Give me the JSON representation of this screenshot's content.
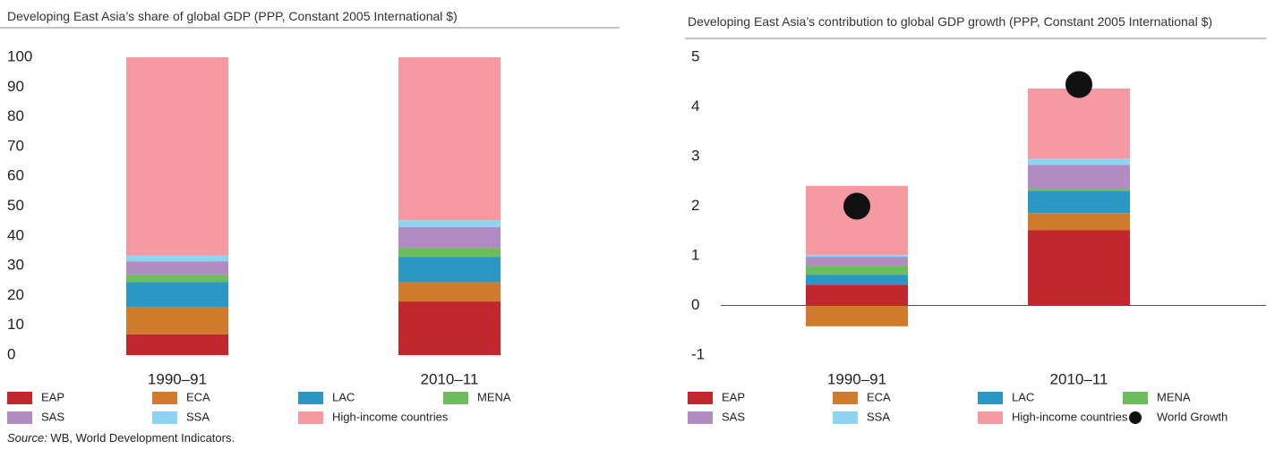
{
  "chart_data": [
    {
      "type": "bar",
      "stacked": true,
      "title": "Developing East Asia’s share of global GDP (PPP, Constant 2005 International $)",
      "categories": [
        "1990–91",
        "2010–11"
      ],
      "series": [
        {
          "name": "EAP",
          "color": "#c1272d",
          "values": [
            7,
            18
          ]
        },
        {
          "name": "ECA",
          "color": "#d07a2e",
          "values": [
            9,
            6.5
          ]
        },
        {
          "name": "LAC",
          "color": "#2b97c4",
          "values": [
            8.5,
            8.5
          ]
        },
        {
          "name": "MENA",
          "color": "#6cbd5c",
          "values": [
            2.5,
            3
          ]
        },
        {
          "name": "SAS",
          "color": "#b08cc2",
          "values": [
            4.5,
            7
          ]
        },
        {
          "name": "SSA",
          "color": "#8fd3f2",
          "values": [
            2,
            2.3
          ]
        },
        {
          "name": "High-income countries",
          "color": "#f49aa0",
          "values": [
            66.5,
            54.7
          ]
        }
      ],
      "ylim": [
        0,
        100
      ],
      "yticks": [
        0,
        10,
        20,
        30,
        40,
        50,
        60,
        70,
        80,
        90,
        100
      ]
    },
    {
      "type": "bar",
      "stacked": true,
      "title": "Developing East Asia’s contribution to global GDP growth (PPP, Constant 2005 International $)",
      "categories": [
        "1990–91",
        "2010–11"
      ],
      "series": [
        {
          "name": "EAP",
          "color": "#c1272d",
          "values": [
            0.42,
            1.52
          ]
        },
        {
          "name": "ECA",
          "color": "#d07a2e",
          "values": [
            -0.42,
            0.34
          ]
        },
        {
          "name": "LAC",
          "color": "#2b97c4",
          "values": [
            0.2,
            0.45
          ]
        },
        {
          "name": "MENA",
          "color": "#6cbd5c",
          "values": [
            0.18,
            0.04
          ]
        },
        {
          "name": "SAS",
          "color": "#b08cc2",
          "values": [
            0.18,
            0.48
          ]
        },
        {
          "name": "SSA",
          "color": "#8fd3f2",
          "values": [
            0.04,
            0.13
          ]
        },
        {
          "name": "High-income countries",
          "color": "#f49aa0",
          "values": [
            1.39,
            1.41
          ]
        }
      ],
      "points": {
        "name": "World Growth",
        "color": "#111111",
        "values": [
          2.0,
          4.45
        ]
      },
      "ylim": [
        -1,
        5
      ],
      "yticks": [
        -1,
        0,
        1,
        2,
        3,
        4,
        5
      ]
    }
  ],
  "source": {
    "label": "Source:",
    "text": " WB, World Development Indicators."
  }
}
